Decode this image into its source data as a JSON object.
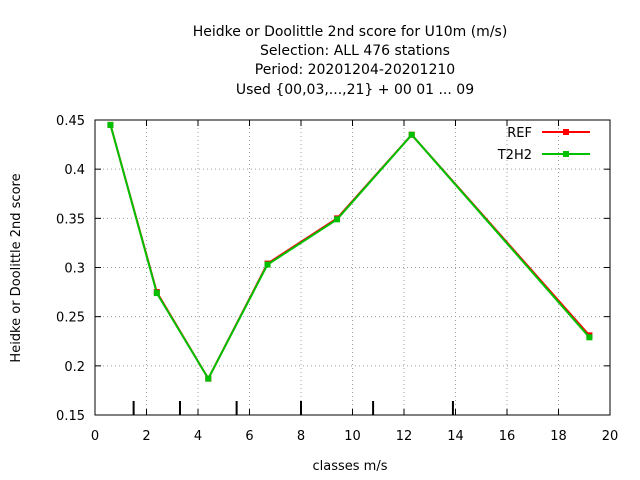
{
  "chart_data": {
    "type": "line",
    "title_lines": [
      "Heidke or Doolittle 2nd score  for U10m (m/s)",
      "Selection: ALL    476 stations",
      "Period: 20201204-20201210",
      "Used {00,03,...,21} + 00 01 ... 09"
    ],
    "xlabel": "classes m/s",
    "ylabel": "Heidke or Doolittle 2nd score",
    "xlim": [
      0,
      20
    ],
    "ylim": [
      0.15,
      0.45
    ],
    "x_ticks": [
      0,
      2,
      4,
      6,
      8,
      10,
      12,
      14,
      16,
      18,
      20
    ],
    "x_tick_labels": [
      "0",
      "2",
      "4",
      "6",
      "8",
      "10",
      "12",
      "14",
      "16",
      "18",
      "20"
    ],
    "y_ticks": [
      0.15,
      0.2,
      0.25,
      0.3,
      0.35,
      0.4,
      0.45
    ],
    "y_tick_labels": [
      "0.15",
      "0.2",
      "0.25",
      "0.3",
      "0.35",
      "0.4",
      "0.45"
    ],
    "grid": true,
    "legend_position": "top-right",
    "class_boundaries": [
      1.5,
      3.3,
      5.5,
      8.0,
      10.8,
      13.9
    ],
    "series": [
      {
        "name": "REF",
        "color": "#ff0000",
        "x": [
          0.6,
          2.4,
          4.4,
          6.7,
          9.4,
          12.3,
          19.2
        ],
        "y": [
          0.445,
          0.275,
          0.187,
          0.304,
          0.35,
          0.435,
          0.231
        ]
      },
      {
        "name": "T2H2",
        "color": "#00c000",
        "x": [
          0.6,
          2.4,
          4.4,
          6.7,
          9.4,
          12.3,
          19.2
        ],
        "y": [
          0.445,
          0.274,
          0.187,
          0.303,
          0.349,
          0.435,
          0.229
        ]
      }
    ]
  }
}
